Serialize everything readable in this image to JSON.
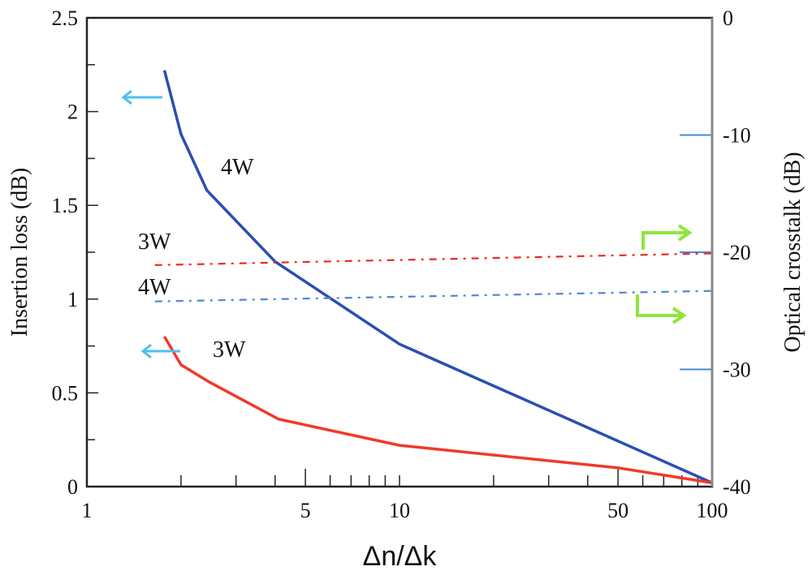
{
  "chart_data": {
    "type": "line",
    "xlabel": "Δn/Δk",
    "ylabel": "Insertion loss (dB)",
    "y2label": "Optical crosstalk (dB)",
    "xscale": "log",
    "xlim": [
      1,
      100
    ],
    "ylim": [
      0,
      2.5
    ],
    "y2lim": [
      -40,
      0
    ],
    "x_ticks": [
      1,
      5,
      10,
      50,
      100
    ],
    "y_ticks": [
      0,
      0.5,
      1,
      1.5,
      2,
      2.5
    ],
    "y_tick_labels": [
      "0",
      "0.5",
      "1",
      "1.5",
      "2",
      "2.5"
    ],
    "y2_ticks": [
      0,
      -10,
      -20,
      -30,
      -40
    ],
    "y2_tick_labels": [
      "0",
      "-10",
      "-20",
      "-30",
      "-40"
    ],
    "grid": false,
    "series": [
      {
        "name": "4W insertion loss",
        "label": "4W",
        "axis": "left",
        "style": "solid",
        "color": "#2b4fb0",
        "x": [
          1.77,
          2.0,
          2.42,
          4.0,
          10,
          100
        ],
        "y": [
          2.22,
          1.88,
          1.58,
          1.2,
          0.76,
          0.02
        ]
      },
      {
        "name": "3W insertion loss",
        "label": "3W",
        "axis": "left",
        "style": "solid",
        "color": "#f03a2a",
        "x": [
          1.77,
          2.0,
          2.45,
          4.1,
          10,
          50,
          100
        ],
        "y": [
          0.8,
          0.65,
          0.56,
          0.36,
          0.22,
          0.1,
          0.02
        ]
      },
      {
        "name": "3W crosstalk",
        "label": "3W",
        "axis": "right",
        "style": "dashdot",
        "color": "#ee2a1e",
        "x": [
          1.65,
          100
        ],
        "y": [
          -21.1,
          -20.1
        ]
      },
      {
        "name": "4W crosstalk",
        "label": "4W",
        "axis": "right",
        "style": "dashdot",
        "color": "#4a86d8",
        "x": [
          1.65,
          100
        ],
        "y": [
          -24.2,
          -23.3
        ]
      }
    ],
    "colors": {
      "left_arrow": "#4fc0f0",
      "right_arrow": "#8ee63a",
      "right_tick": "#4a86d8"
    }
  }
}
